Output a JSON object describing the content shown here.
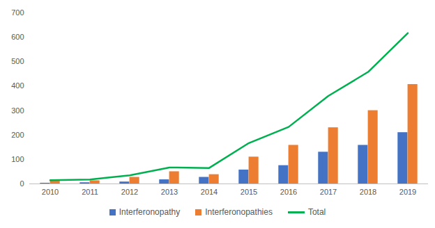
{
  "chart_data": {
    "type": "bar",
    "categories": [
      "2010",
      "2011",
      "2012",
      "2013",
      "2014",
      "2015",
      "2016",
      "2017",
      "2018",
      "2019"
    ],
    "series": [
      {
        "name": "Interferonopathy",
        "type": "bar",
        "color": "#4472c4",
        "values": [
          3,
          5,
          8,
          17,
          27,
          57,
          75,
          130,
          158,
          210
        ]
      },
      {
        "name": "Interferonopathies",
        "type": "bar",
        "color": "#ed7d31",
        "values": [
          12,
          13,
          27,
          50,
          38,
          110,
          158,
          230,
          300,
          407
        ]
      },
      {
        "name": "Total",
        "type": "line",
        "color": "#00b050",
        "values": [
          15,
          18,
          35,
          67,
          65,
          167,
          233,
          360,
          458,
          617
        ]
      }
    ],
    "ylim": [
      0,
      700
    ],
    "yticks": [
      0,
      100,
      200,
      300,
      400,
      500,
      600,
      700
    ],
    "grid": false,
    "legend": "bottom"
  }
}
